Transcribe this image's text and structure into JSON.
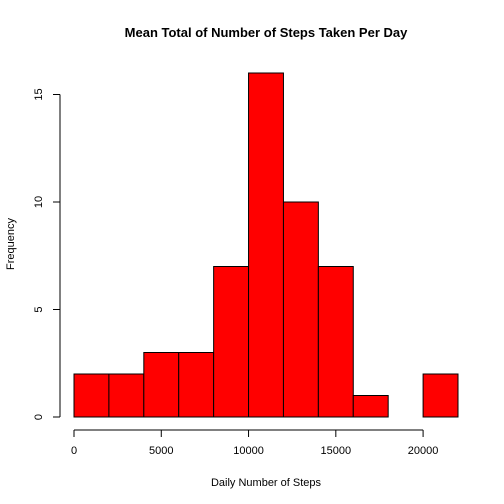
{
  "chart_data": {
    "type": "bar",
    "title": "Mean Total of Number of Steps Taken Per Day",
    "xlabel": "Daily Number of Steps",
    "ylabel": "Frequency",
    "bar_color": "#ff0000",
    "bins": [
      {
        "start": 0,
        "end": 2000,
        "count": 2
      },
      {
        "start": 2000,
        "end": 4000,
        "count": 2
      },
      {
        "start": 4000,
        "end": 6000,
        "count": 3
      },
      {
        "start": 6000,
        "end": 8000,
        "count": 3
      },
      {
        "start": 8000,
        "end": 10000,
        "count": 7
      },
      {
        "start": 10000,
        "end": 12000,
        "count": 16
      },
      {
        "start": 12000,
        "end": 14000,
        "count": 10
      },
      {
        "start": 14000,
        "end": 16000,
        "count": 7
      },
      {
        "start": 16000,
        "end": 18000,
        "count": 1
      },
      {
        "start": 18000,
        "end": 20000,
        "count": 0
      },
      {
        "start": 20000,
        "end": 22000,
        "count": 2
      }
    ],
    "xlim": [
      0,
      22000
    ],
    "ylim": [
      0,
      16
    ],
    "x_ticks": [
      0,
      5000,
      10000,
      15000,
      20000
    ],
    "x_tick_labels": [
      "0",
      "5000",
      "10000",
      "15000",
      "20000"
    ],
    "y_ticks": [
      0,
      5,
      10,
      15
    ],
    "y_tick_labels": [
      "0",
      "5",
      "10",
      "15"
    ],
    "grid": false,
    "legend": false
  }
}
